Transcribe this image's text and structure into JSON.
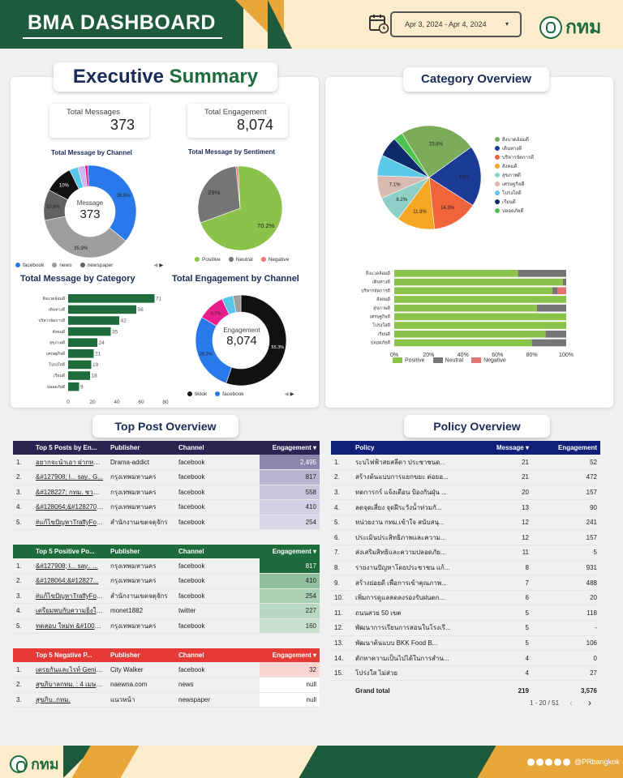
{
  "header": {
    "title": "BMA DASHBOARD",
    "date_range": "Apr 3, 2024 - Apr 4, 2024",
    "logo_text": "กทม"
  },
  "executive": {
    "title_a": "Executive",
    "title_b": "Summary",
    "kpis": [
      {
        "label": "Total Messages",
        "value": "373"
      },
      {
        "label": "Total Engagement",
        "value": "8,074"
      }
    ],
    "channel_donut": {
      "title": "Total Message by Channel",
      "center_label": "Message",
      "center_value": "373",
      "slices": [
        {
          "name": "facebook",
          "pct": 36.8,
          "label": "36.8%",
          "color": "#2979ea"
        },
        {
          "name": "news",
          "pct": 35.9,
          "label": "35.9%",
          "color": "#9e9e9e"
        },
        {
          "name": "newspaper",
          "pct": 10.8,
          "label": "10.8%",
          "color": "#616161"
        },
        {
          "name": "",
          "pct": 10,
          "label": "10%",
          "color": "#111111"
        },
        {
          "name": "",
          "pct": 3,
          "label": "",
          "color": "#55c6e8"
        },
        {
          "name": "",
          "pct": 2.5,
          "label": "",
          "color": "#c9b8f0"
        },
        {
          "name": "",
          "pct": 1,
          "label": "",
          "color": "#e91e8c"
        }
      ],
      "legend": [
        "facebook",
        "news",
        "newspaper"
      ],
      "page": "1/3"
    },
    "sentiment_pie": {
      "title": "Total Message by Sentiment",
      "slices": [
        {
          "name": "Positive",
          "pct": 70.2,
          "label": "70.2%",
          "color": "#8bc34a"
        },
        {
          "name": "Neutral",
          "pct": 29,
          "label": "29%",
          "color": "#757575"
        },
        {
          "name": "Negative",
          "pct": 0.8,
          "label": "",
          "color": "#e57373"
        }
      ]
    },
    "category_bar": {
      "title": "Total Message by Category",
      "categories": [
        "สิ่งแวดล้อมดี",
        "เดินทางดี",
        "บริหารจัดการดี",
        "สังคมดี",
        "สุขภาพดี",
        "เศรษฐกิจดี",
        "โปร่งใสดี",
        "เรียนดี",
        "ปลอดภัยดี"
      ],
      "values": [
        71,
        56,
        42,
        35,
        24,
        21,
        19,
        18,
        9
      ],
      "ticks": [
        "0",
        "20",
        "40",
        "60",
        "80"
      ],
      "xmax": 80,
      "color": "#1e6b3c"
    },
    "engagement_donut": {
      "title": "Total Engagement by Channel",
      "center_label": "Engagement",
      "center_value": "8,074",
      "slices": [
        {
          "name": "tiktok",
          "pct": 55.3,
          "label": "55.3%",
          "color": "#111111"
        },
        {
          "name": "facebook",
          "pct": 28.2,
          "label": "28.2%",
          "color": "#2979ea"
        },
        {
          "name": "",
          "pct": 9.7,
          "label": "9.7%",
          "color": "#e91e8c"
        },
        {
          "name": "",
          "pct": 4,
          "label": "",
          "color": "#55c6e8"
        },
        {
          "name": "",
          "pct": 2.8,
          "label": "",
          "color": "#9e9e9e"
        }
      ],
      "legend": [
        "tiktok",
        "facebook"
      ],
      "page": "1/2"
    }
  },
  "category": {
    "title": "Category Overview",
    "pie": {
      "slices": [
        {
          "name": "สิ่งแวดล้อมดี",
          "pct": 23.8,
          "label": "23.8%",
          "color": "#7cab5a"
        },
        {
          "name": "เดินทางดี",
          "pct": 19,
          "label": "19%",
          "color": "#1b3b96"
        },
        {
          "name": "บริหารจัดการดี",
          "pct": 14.3,
          "label": "14.3%",
          "color": "#f0643c"
        },
        {
          "name": "สังคมดี",
          "pct": 11.9,
          "label": "11.9%",
          "color": "#f5a623"
        },
        {
          "name": "สุขภาพดี",
          "pct": 8.2,
          "label": "8.2%",
          "color": "#8ecfc7"
        },
        {
          "name": "เศรษฐกิจดี",
          "pct": 7.1,
          "label": "7.1%",
          "color": "#d9bab0"
        },
        {
          "name": "โปร่งใสดี",
          "pct": 6.5,
          "label": "",
          "color": "#5bc8e8"
        },
        {
          "name": "เรียนดี",
          "pct": 6.3,
          "label": "",
          "color": "#0d2a6b"
        },
        {
          "name": "ปลอดภัยดี",
          "pct": 2.9,
          "label": "",
          "color": "#4ec24e"
        }
      ]
    },
    "stacked": {
      "categories": [
        "สิ่งแวดล้อมดี",
        "เดินทางดี",
        "บริหารจัดการดี",
        "สังคมดี",
        "สุขภาพดี",
        "เศรษฐกิจดี",
        "โปร่งใสดี",
        "เรียนดี",
        "ปลอดภัยดี"
      ],
      "positive": [
        72,
        98,
        92,
        100,
        83,
        100,
        100,
        88,
        80
      ],
      "neutral": [
        28,
        2,
        3,
        0,
        17,
        0,
        0,
        12,
        20
      ],
      "negative": [
        0,
        0,
        5,
        0,
        0,
        0,
        0,
        0,
        0
      ],
      "ticks": [
        "0%",
        "20%",
        "40%",
        "60%",
        "80%",
        "100%"
      ],
      "legend": [
        "Positive",
        "Neutral",
        "Negative"
      ],
      "colors": {
        "positive": "#8bc34a",
        "neutral": "#757575",
        "negative": "#e57373"
      }
    }
  },
  "top_posts": {
    "title": "Top Post Overview",
    "top5": {
      "headers": [
        "Top 5 Posts by En...",
        "Publisher",
        "Channel",
        "Engagement ▾"
      ],
      "header_color": "#2a2352",
      "rows": [
        [
          "1.",
          "อยากจะนำเอา ฝากหน่วยงาน...",
          "Drama-addict",
          "facebook",
          "2,495"
        ],
        [
          "2.",
          "&#127908; l... say.. G...",
          "กรุงเทพมหานคร",
          "facebook",
          "817"
        ],
        [
          "3.",
          "&#128227; กทม. ชวนร่ว...",
          "กรุงเทพมหานคร",
          "facebook",
          "558"
        ],
        [
          "4.",
          "&#128064;&#128270;...",
          "กรุงเทพมหานคร",
          "facebook",
          "410"
        ],
        [
          "5.",
          "#แก้ไขปัญหาTraffyFond...",
          "สำนักงานเขตจตุจักร",
          "facebook",
          "254"
        ]
      ],
      "shades": [
        "#8b86ad",
        "#b9b6cf",
        "#c9c7dc",
        "#d2d0e2",
        "#d9d8e8"
      ]
    },
    "positive": {
      "headers": [
        "Top 5 Positive Po...",
        "Publisher",
        "Channel",
        "Engagement ▾"
      ],
      "header_color": "#1e6b3c",
      "rows": [
        [
          "1.",
          "&#127908; l... say.. ...",
          "กรุงเทพมหานคร",
          "facebook",
          "817"
        ],
        [
          "2.",
          "&#128064;&#12827...",
          "กรุงเทพมหานคร",
          "facebook",
          "410"
        ],
        [
          "3.",
          "#แก้ไขปัญหาTraffyFon...",
          "สำนักงานเขตจตุจักร",
          "facebook",
          "254"
        ],
        [
          "4.",
          "เตรียมพบกับความยิ่งใหญ่...",
          "monet1882",
          "twitter",
          "227"
        ],
        [
          "5.",
          "ทดสอบ ใหม่ท &#10060...",
          "กรุงเทพมหานคร",
          "facebook",
          "160"
        ]
      ],
      "shades": [
        "#1e6b3c",
        "#8fbf9f",
        "#a9cfb4",
        "#b9d8c2",
        "#c9e1cf"
      ]
    },
    "negative": {
      "headers": [
        "Top 5 Negative P...",
        "Publisher",
        "Channel",
        "Engagement ▾"
      ],
      "header_color": "#e53935",
      "rows": [
        [
          "1.",
          "เตรยกันและไรท์ Genius a...",
          "City Walker",
          "facebook",
          "32"
        ],
        [
          "2.",
          "สุขภิบาลกทม. : 4 เมษายน 2...",
          "naewna.com",
          "news",
          "null"
        ],
        [
          "3.",
          "สุขภิบ..กทม.",
          "แนวหน้า",
          "newspaper",
          "null"
        ]
      ],
      "shades": [
        "#fbd4d4",
        "#ffffff",
        "#ffffff"
      ]
    }
  },
  "policy": {
    "title": "Policy Overview",
    "headers": [
      "Policy",
      "Message ▾",
      "Engagement"
    ],
    "rows": [
      [
        "1.",
        "ระบไฟฟ้าสยสลีดา ประชาชนด...",
        "21",
        "52"
      ],
      [
        "2.",
        "สร้างต้นแบบการแยกขยะ ต่อยอ...",
        "21",
        "472"
      ],
      [
        "3.",
        "ทดการกร์ แจ้งเตือน ป้องกันฝุ่น ...",
        "20",
        "157"
      ],
      [
        "4.",
        "ลดจุดเสี่ยง จุดฝีระวังน้ำท่วมกั...",
        "13",
        "90"
      ],
      [
        "5.",
        "หน่วยงาน กทม.เข้าใจ สนับสนุ...",
        "12",
        "241"
      ],
      [
        "6.",
        "ประเมินประสิทธิภาพและความ...",
        "12",
        "157"
      ],
      [
        "7.",
        "ส่งเสริมสิทธิและความปลอดภัย...",
        "11",
        "5"
      ],
      [
        "8.",
        "รายงานปัญหาโดยประชาชน แก้...",
        "8",
        "931"
      ],
      [
        "9.",
        "สร้างย่อยดี เพื่อการเข้าคุณภาพ...",
        "7",
        "488"
      ],
      [
        "10.",
        "เพิ่มการดูแลลดลงรองรับฝนตก...",
        "6",
        "20"
      ],
      [
        "11.",
        "ถนนสวย 50 เขต",
        "5",
        "118"
      ],
      [
        "12.",
        "พัฒนาการเรียนการสอนในโรงเรี...",
        "5",
        "-"
      ],
      [
        "13.",
        "พัฒนาต้นแบบ BKK Food B...",
        "5",
        "106"
      ],
      [
        "14.",
        "ตักหาความเป็นไปได้ในการสำน...",
        "4",
        "0"
      ],
      [
        "15.",
        "โปร่งใส ไม่ส่วย",
        "4",
        "27"
      ]
    ],
    "total": [
      "Grand total",
      "219",
      "3,576"
    ],
    "pagination": "1 - 20 / 51"
  },
  "footer": {
    "logo_text": "กทม",
    "social_handle": "@PRbangkok"
  }
}
